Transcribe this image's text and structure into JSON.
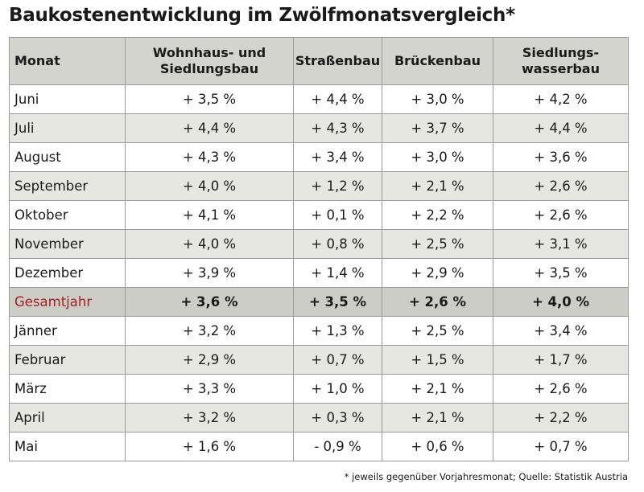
{
  "title": "Baukostenentwicklung im Zwölfmonatsvergleich*",
  "footnote": "* jeweils gegenüber Vorjahresmonat; Quelle: Statistik Austria",
  "colors": {
    "header_bg": "#d4d4cf",
    "stripe_bg": "#e7e7e2",
    "total_bg": "#cdcdc8",
    "highlight_text": "#a31f25"
  },
  "chart_data": {
    "type": "table",
    "title": "Baukostenentwicklung im Zwölfmonatsvergleich*",
    "columns": [
      "Monat",
      "Wohnhaus- und Siedlungsbau",
      "Straßenbau",
      "Brückenbau",
      "Siedlungs-wasserbau"
    ],
    "rows": [
      {
        "month": "Juni",
        "values": [
          "+ 3,5 %",
          "+ 4,4 %",
          "+ 3,0 %",
          "+ 4,2 %"
        ]
      },
      {
        "month": "Juli",
        "values": [
          "+ 4,4 %",
          "+ 4,3 %",
          "+ 3,7 %",
          "+ 4,4 %"
        ]
      },
      {
        "month": "August",
        "values": [
          "+ 4,3 %",
          "+ 3,4 %",
          "+ 3,0 %",
          "+ 3,6 %"
        ]
      },
      {
        "month": "September",
        "values": [
          "+ 4,0 %",
          "+ 1,2 %",
          "+ 2,1 %",
          "+ 2,6 %"
        ]
      },
      {
        "month": "Oktober",
        "values": [
          "+ 4,1 %",
          "+ 0,1 %",
          "+ 2,2 %",
          "+ 2,6 %"
        ]
      },
      {
        "month": "November",
        "values": [
          "+ 4,0 %",
          "+ 0,8 %",
          "+ 2,5 %",
          "+ 3,1 %"
        ]
      },
      {
        "month": "Dezember",
        "values": [
          "+ 3,9 %",
          "+ 1,4 %",
          "+ 2,9 %",
          "+ 3,5 %"
        ]
      },
      {
        "month": "Gesamtjahr",
        "values": [
          "+ 3,6 %",
          "+ 3,5 %",
          "+ 2,6 %",
          "+ 4,0 %"
        ],
        "total": true
      },
      {
        "month": "Jänner",
        "values": [
          "+ 3,2 %",
          "+ 1,3 %",
          "+ 2,5 %",
          "+ 3,4 %"
        ]
      },
      {
        "month": "Februar",
        "values": [
          "+ 2,9 %",
          "+ 0,7 %",
          "+ 1,5 %",
          "+ 1,7 %"
        ]
      },
      {
        "month": "März",
        "values": [
          "+ 3,3 %",
          "+ 1,0 %",
          "+ 2,1 %",
          "+ 2,6 %"
        ]
      },
      {
        "month": "April",
        "values": [
          "+ 3,2 %",
          "+ 0,3 %",
          "+ 2,1 %",
          "+ 2,2 %"
        ]
      },
      {
        "month": "Mai",
        "values": [
          "+ 1,6 %",
          "- 0,9 %",
          "+ 0,6 %",
          "+ 0,7 %"
        ]
      }
    ]
  }
}
